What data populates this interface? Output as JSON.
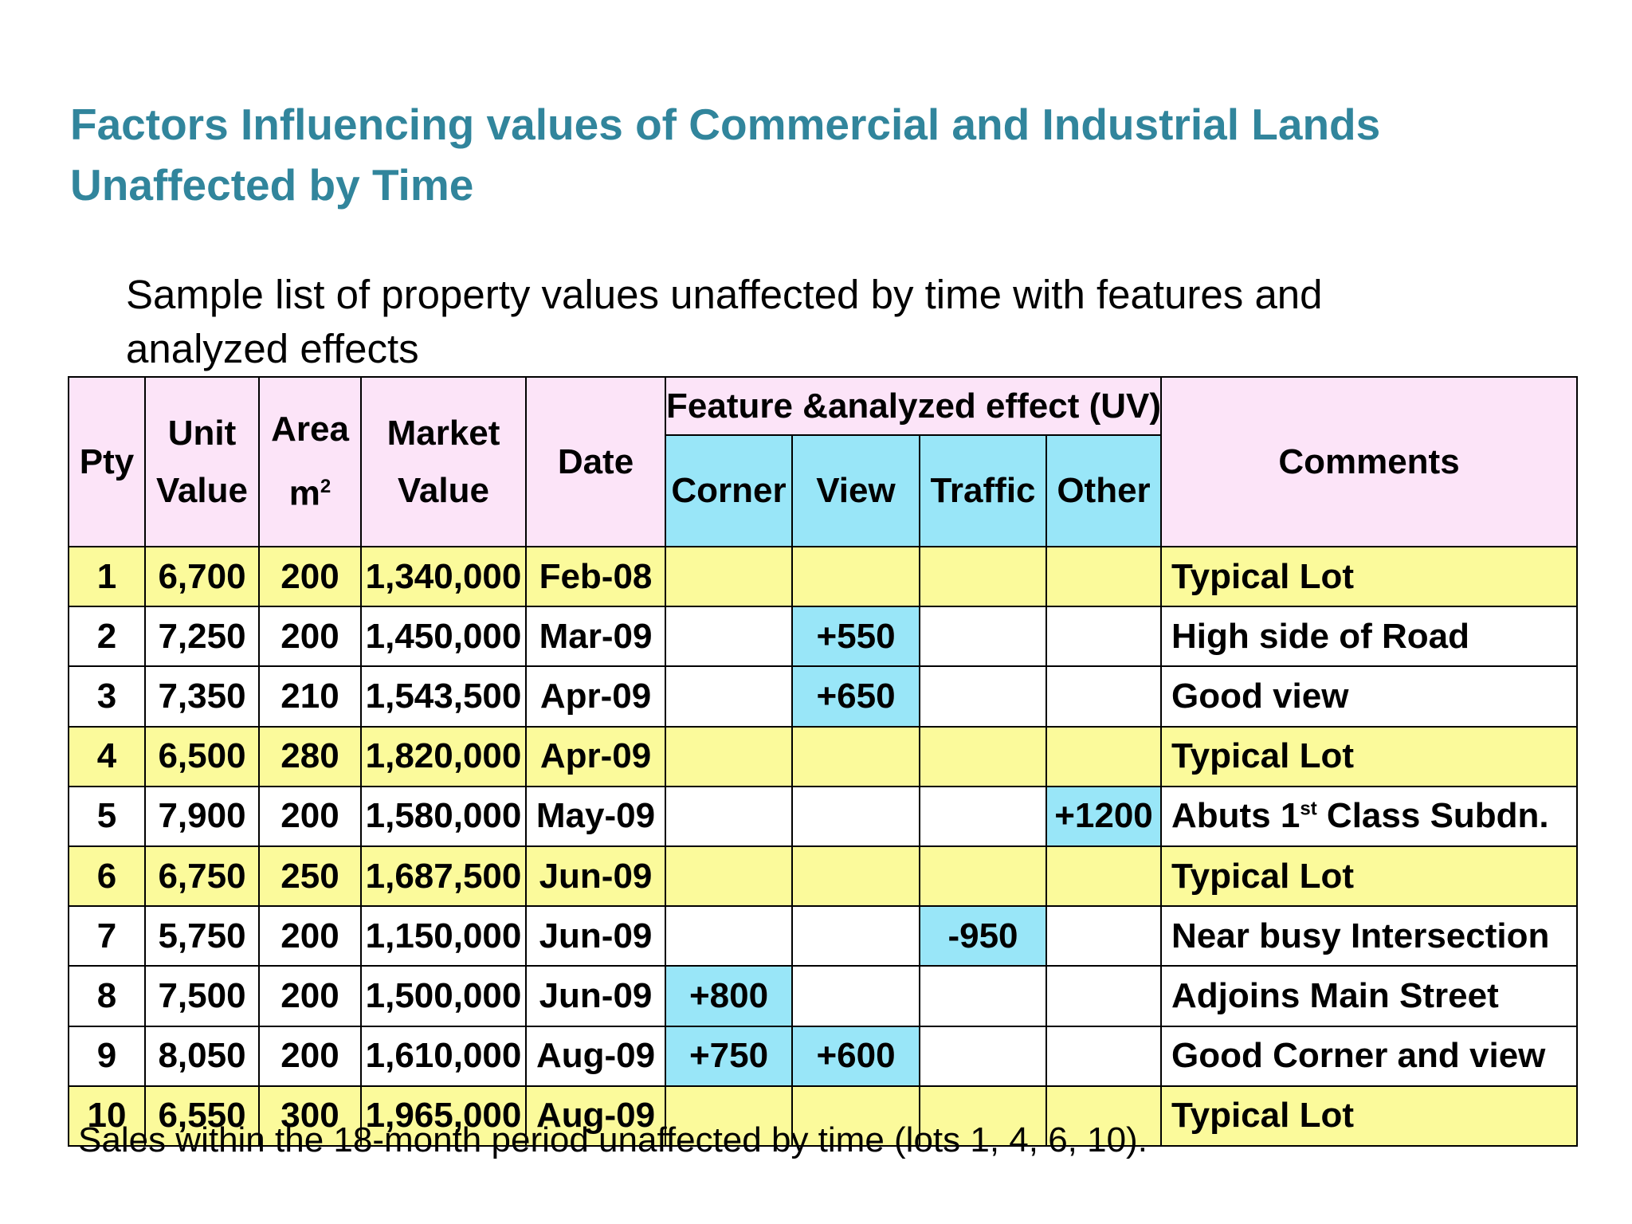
{
  "title": "Factors Influencing values of Commercial and Industrial Lands Unaffected by Time",
  "subtitle": "Sample list of property values unaffected by time with features and analyzed effects",
  "table": {
    "headers": {
      "pty": "Pty",
      "unit_value_1": "Unit",
      "unit_value_2": "Value",
      "area_1": "Area",
      "area_2": "m",
      "area_sup": "2",
      "market_value_1": "Market",
      "market_value_2": "Value",
      "date": "Date",
      "feature_group": "Feature &analyzed effect (UV)",
      "corner": "Corner",
      "view": "View",
      "traffic": "Traffic",
      "other": "Other",
      "comments": "Comments"
    },
    "rows": [
      {
        "pty": "1",
        "unit_value": "6,700",
        "area": "200",
        "market_value": "1,340,000",
        "date": "Feb-08",
        "corner": "",
        "view": "",
        "traffic": "",
        "other": "",
        "comment": "Typical Lot",
        "comment_sup": "",
        "comment_rest": "",
        "typical": true
      },
      {
        "pty": "2",
        "unit_value": "7,250",
        "area": "200",
        "market_value": "1,450,000",
        "date": "Mar-09",
        "corner": "",
        "view": "+550",
        "traffic": "",
        "other": "",
        "comment": "High side of Road",
        "comment_sup": "",
        "comment_rest": "",
        "typical": false
      },
      {
        "pty": "3",
        "unit_value": "7,350",
        "area": "210",
        "market_value": "1,543,500",
        "date": "Apr-09",
        "corner": "",
        "view": "+650",
        "traffic": "",
        "other": "",
        "comment": "Good view",
        "comment_sup": "",
        "comment_rest": "",
        "typical": false
      },
      {
        "pty": "4",
        "unit_value": "6,500",
        "area": "280",
        "market_value": "1,820,000",
        "date": "Apr-09",
        "corner": "",
        "view": "",
        "traffic": "",
        "other": "",
        "comment": "Typical Lot",
        "comment_sup": "",
        "comment_rest": "",
        "typical": true
      },
      {
        "pty": "5",
        "unit_value": "7,900",
        "area": "200",
        "market_value": "1,580,000",
        "date": "May-09",
        "corner": "",
        "view": "",
        "traffic": "",
        "other": "+1200",
        "comment": "Abuts 1",
        "comment_sup": "st",
        "comment_rest": " Class Subdn.",
        "typical": false
      },
      {
        "pty": "6",
        "unit_value": "6,750",
        "area": "250",
        "market_value": "1,687,500",
        "date": "Jun-09",
        "corner": "",
        "view": "",
        "traffic": "",
        "other": "",
        "comment": "Typical Lot",
        "comment_sup": "",
        "comment_rest": "",
        "typical": true
      },
      {
        "pty": "7",
        "unit_value": "5,750",
        "area": "200",
        "market_value": "1,150,000",
        "date": "Jun-09",
        "corner": "",
        "view": "",
        "traffic": "-950",
        "other": "",
        "comment": "Near busy Intersection",
        "comment_sup": "",
        "comment_rest": "",
        "typical": false
      },
      {
        "pty": "8",
        "unit_value": "7,500",
        "area": "200",
        "market_value": "1,500,000",
        "date": "Jun-09",
        "corner": "+800",
        "view": "",
        "traffic": "",
        "other": "",
        "comment": "Adjoins Main Street",
        "comment_sup": "",
        "comment_rest": "",
        "typical": false
      },
      {
        "pty": "9",
        "unit_value": "8,050",
        "area": "200",
        "market_value": "1,610,000",
        "date": "Aug-09",
        "corner": "+750",
        "view": "+600",
        "traffic": "",
        "other": "",
        "comment": "Good Corner and view",
        "comment_sup": "",
        "comment_rest": "",
        "typical": false
      },
      {
        "pty": "10",
        "unit_value": "6,550",
        "area": "300",
        "market_value": "1,965,000",
        "date": "Aug-09",
        "corner": "",
        "view": "",
        "traffic": "",
        "other": "",
        "comment": "Typical Lot",
        "comment_sup": "",
        "comment_rest": "",
        "typical": true
      }
    ]
  },
  "footer_note": "Sales within the 18-month period unaffected by time (lots 1, 4, 6, 10).",
  "colors": {
    "title": "#31859c",
    "header_pink": "#fce4f8",
    "header_cyan": "#99e6f8",
    "row_yellow": "#fbfa9b",
    "highlight_cyan": "#99e6f8"
  }
}
